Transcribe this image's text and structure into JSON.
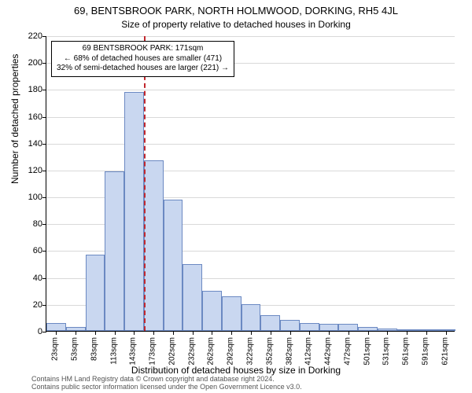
{
  "title_line1": "69, BENTSBROOK PARK, NORTH HOLMWOOD, DORKING, RH5 4JL",
  "title_line2": "Size of property relative to detached houses in Dorking",
  "y_axis_label": "Number of detached properties",
  "x_axis_label": "Distribution of detached houses by size in Dorking",
  "footer_line1": "Contains HM Land Registry data © Crown copyright and database right 2024.",
  "footer_line2": "Contains public sector information licensed under the Open Government Licence v3.0.",
  "chart": {
    "type": "histogram",
    "ylim": [
      0,
      220
    ],
    "ytick_step": 20,
    "y_ticks": [
      0,
      20,
      40,
      60,
      80,
      100,
      120,
      140,
      160,
      180,
      200,
      220
    ],
    "x_categories": [
      "23sqm",
      "53sqm",
      "83sqm",
      "113sqm",
      "143sqm",
      "173sqm",
      "202sqm",
      "232sqm",
      "262sqm",
      "292sqm",
      "322sqm",
      "352sqm",
      "382sqm",
      "412sqm",
      "442sqm",
      "472sqm",
      "501sqm",
      "531sqm",
      "561sqm",
      "591sqm",
      "621sqm"
    ],
    "values": [
      6,
      3,
      57,
      119,
      178,
      127,
      98,
      50,
      30,
      26,
      20,
      12,
      8,
      6,
      5,
      5,
      3,
      2,
      1,
      1,
      1
    ],
    "bar_fill": "#c9d7f0",
    "bar_stroke": "#6b89c2",
    "grid_color": "#d9d9d9",
    "background_color": "#ffffff",
    "marker": {
      "position_index": 5,
      "color": "#c1272d"
    },
    "annotation": {
      "line1": "69 BENTSBROOK PARK: 171sqm",
      "line2": "← 68% of detached houses are smaller (471)",
      "line3": "32% of semi-detached houses are larger (221) →"
    }
  }
}
